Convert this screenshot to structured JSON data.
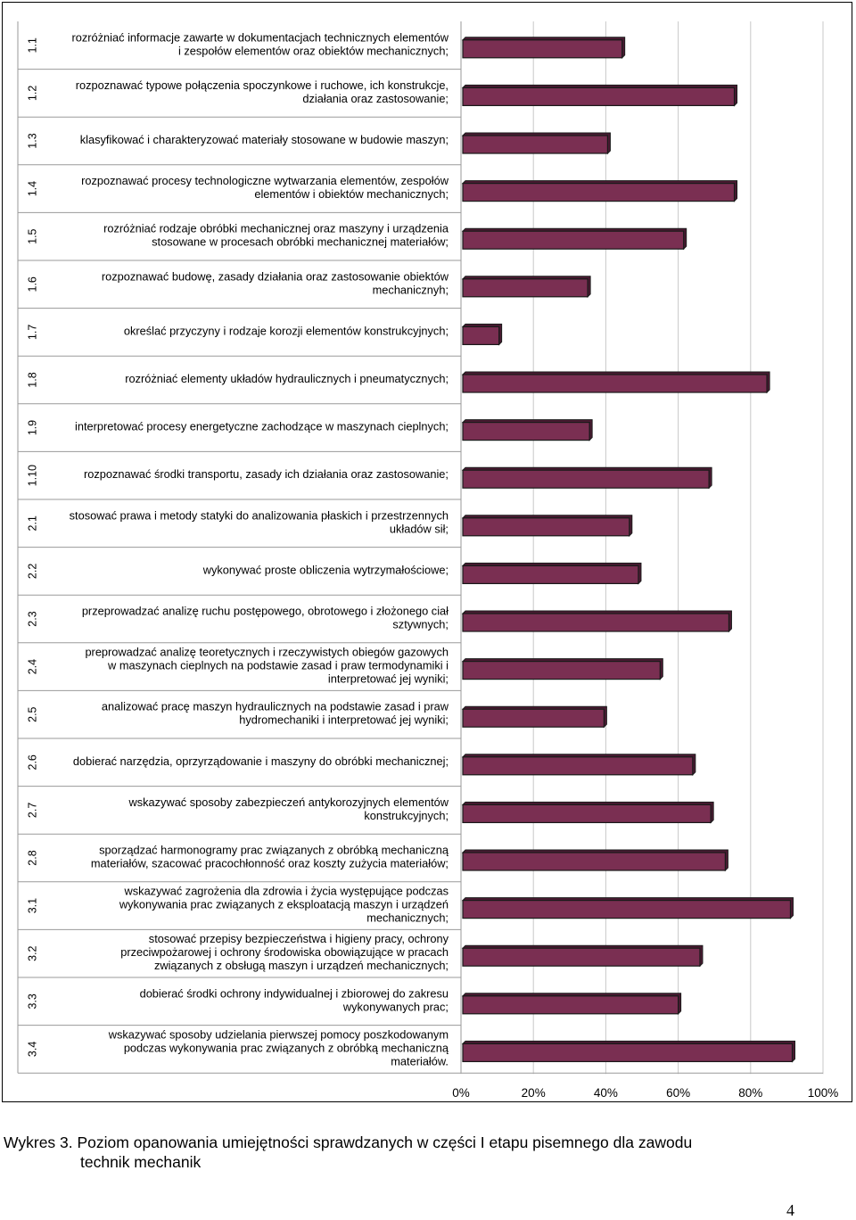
{
  "chart_data": {
    "type": "bar",
    "orientation": "horizontal",
    "bar_color": "#7a2f52",
    "bar_edge_color": "#1a1a1a",
    "xlim": [
      0,
      100
    ],
    "x_ticks": [
      "0%",
      "20%",
      "40%",
      "60%",
      "80%",
      "100%"
    ],
    "x_tick_values": [
      0,
      20,
      40,
      60,
      80,
      100
    ],
    "grid": true,
    "rows": [
      {
        "code": "1.1",
        "label": "rozróżniać informacje zawarte w dokumentacjach technicznych elementów\ni zespołów elementów oraz obiektów mechanicznych;",
        "value": 44.5
      },
      {
        "code": "1.2",
        "label": "rozpoznawać typowe połączenia spoczynkowe i ruchowe, ich konstrukcje,\ndziałania oraz zastosowanie;",
        "value": 75.5
      },
      {
        "code": "1.3",
        "label": "klasyfikować i charakteryzować materiały stosowane w budowie maszyn;",
        "value": 40.5
      },
      {
        "code": "1.4",
        "label": "rozpoznawać procesy technologiczne wytwarzania elementów, zespołów\nelementów i obiektów mechanicznych;",
        "value": 75.5
      },
      {
        "code": "1.5",
        "label": "rozróżniać rodzaje obróbki mechanicznej oraz maszyny i urządzenia\nstosowane w procesach obróbki mechanicznej materiałów;",
        "value": 61.5
      },
      {
        "code": "1.6",
        "label": "rozpoznawać budowę, zasady działania oraz zastosowanie obiektów\nmechanicznyh;",
        "value": 35
      },
      {
        "code": "1.7",
        "label": "określać przyczyny i rodzaje korozji elementów konstrukcyjnych;",
        "value": 10.5
      },
      {
        "code": "1.8",
        "label": "rozróżniać elementy układów hydraulicznych i pneumatycznych;",
        "value": 84.5
      },
      {
        "code": "1.9",
        "label": "interpretować procesy energetyczne zachodzące w maszynach cieplnych;",
        "value": 35.5
      },
      {
        "code": "1.10",
        "label": "rozpoznawać środki transportu, zasady ich działania oraz zastosowanie;",
        "value": 68.5
      },
      {
        "code": "2.1",
        "label": "stosować prawa i metody statyki do analizowania płaskich i przestrzennych\nukładów sił;",
        "value": 46.5
      },
      {
        "code": "2.2",
        "label": "wykonywać proste obliczenia wytrzymałościowe;",
        "value": 49
      },
      {
        "code": "2.3",
        "label": "przeprowadzać analizę ruchu postępowego, obrotowego i złożonego ciał\nsztywnych;",
        "value": 74
      },
      {
        "code": "2.4",
        "label": "preprowadzać analizę teoretycznych i rzeczywistych obiegów gazowych\nw maszynach cieplnych na podstawie zasad i praw termodynamiki i\ninterpretować jej wyniki;",
        "value": 55
      },
      {
        "code": "2.5",
        "label": "analizować pracę maszyn hydraulicznych na podstawie zasad i praw\nhydromechaniki i interpretować jej wyniki;",
        "value": 39.5
      },
      {
        "code": "2.6",
        "label": "dobierać narzędzia, oprzyrządowanie i maszyny do obróbki mechanicznej;",
        "value": 64
      },
      {
        "code": "2.7",
        "label": "wskazywać sposoby zabezpieczeń antykorozyjnych elementów\nkonstrukcyjnych;",
        "value": 69
      },
      {
        "code": "2.8",
        "label": "sporządzać harmonogramy prac związanych z obróbką mechaniczną\nmateriałów, szacować pracochłonność oraz koszty zużycia materiałów;",
        "value": 73
      },
      {
        "code": "3.1",
        "label": "wskazywać zagrożenia dla zdrowia i życia występujące podczas\nwykonywania prac związanych z eksploatacją maszyn i urządzeń\nmechanicznych;",
        "value": 91
      },
      {
        "code": "3.2",
        "label": "stosować przepisy bezpieczeństwa i higieny pracy, ochrony\nprzeciwpożarowej i ochrony środowiska obowiązujące w pracach\nzwiązanych z obsługą maszyn i urządzeń mechanicznych;",
        "value": 66
      },
      {
        "code": "3.3",
        "label": "dobierać środki ochrony indywidualnej i zbiorowej do zakresu\nwykonywanych prac;",
        "value": 60
      },
      {
        "code": "3.4",
        "label": "wskazywać sposoby udzielania pierwszej pomocy poszkodowanym\npodczas wykonywania prac związanych z obróbką mechaniczną\nmateriałów.",
        "value": 91.5
      }
    ]
  },
  "caption": {
    "line1": "Wykres 3. Poziom opanowania umiejętności sprawdzanych w części I etapu pisemnego dla zawodu",
    "line2": "technik mechanik"
  },
  "page_number": "4"
}
